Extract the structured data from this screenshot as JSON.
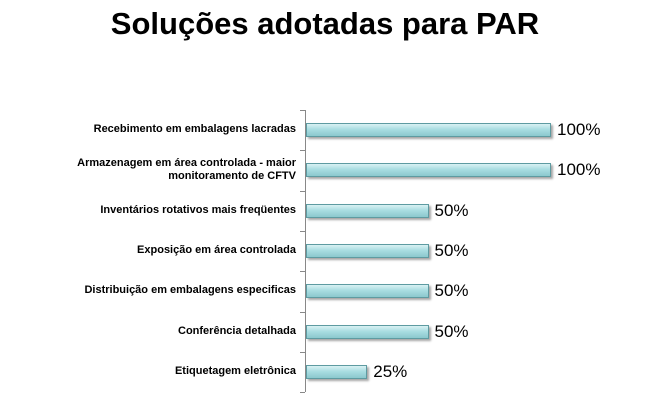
{
  "chart_data": {
    "type": "bar",
    "orientation": "horizontal",
    "title": "Soluções adotadas para PAR",
    "categories": [
      "Recebimento em embalagens lacradas",
      "Armazenagem em área controlada - maior monitoramento de CFTV",
      "Inventários rotativos mais freqüentes",
      "Exposição em área controlada",
      "Distribuição em embalagens especificas",
      "Conferência detalhada",
      "Etiquetagem eletrônica"
    ],
    "values": [
      100,
      100,
      50,
      50,
      50,
      50,
      25
    ],
    "value_labels": [
      "100%",
      "100%",
      "50%",
      "50%",
      "50%",
      "50%",
      "25%"
    ],
    "color": "#a9dde1",
    "xlim": [
      0,
      100
    ]
  }
}
